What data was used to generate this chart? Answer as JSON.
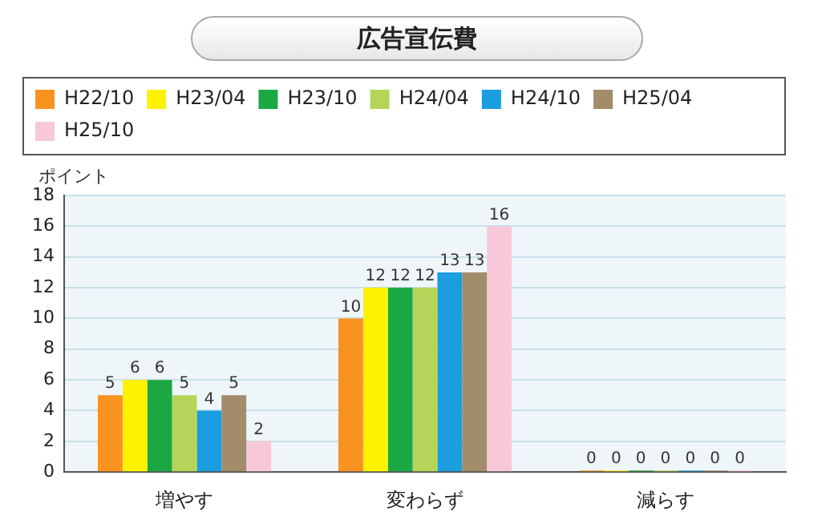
{
  "chart_data": {
    "type": "bar",
    "title": "広告宣伝費",
    "ylabel": "ポイント",
    "categories": [
      "増やす",
      "変わらず",
      "減らす"
    ],
    "series": [
      {
        "name": "H22/10",
        "color": "#f7931e",
        "values": [
          5,
          10,
          0
        ]
      },
      {
        "name": "H23/04",
        "color": "#fff200",
        "values": [
          6,
          12,
          0
        ]
      },
      {
        "name": "H23/10",
        "color": "#1ba843",
        "values": [
          6,
          12,
          0
        ]
      },
      {
        "name": "H24/04",
        "color": "#b5d55a",
        "values": [
          5,
          12,
          0
        ]
      },
      {
        "name": "H24/10",
        "color": "#1b9de0",
        "values": [
          4,
          13,
          0
        ]
      },
      {
        "name": "H25/04",
        "color": "#a38c6a",
        "values": [
          5,
          13,
          0
        ]
      },
      {
        "name": "H25/10",
        "color": "#f7c9d8",
        "values": [
          2,
          16,
          0
        ]
      }
    ],
    "ylim": [
      0,
      18
    ],
    "yticks": [
      0,
      2,
      4,
      6,
      8,
      10,
      12,
      14,
      16,
      18
    ],
    "grid": "y",
    "legend": "top",
    "data_labels": true
  }
}
